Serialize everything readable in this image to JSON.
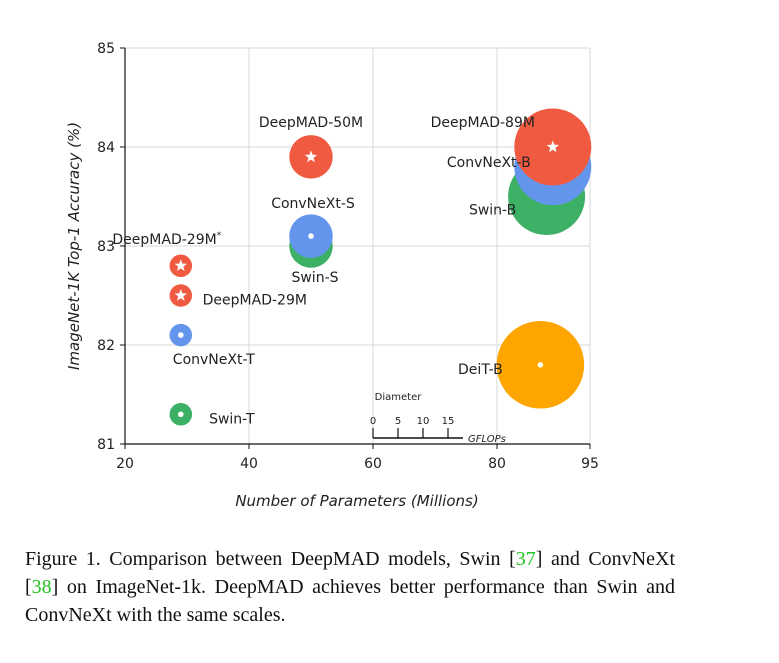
{
  "chart_data": {
    "type": "scatter",
    "xlabel": "Number of Parameters (Millions)",
    "ylabel": "ImageNet-1K Top-1 Accuracy (%)",
    "xlim": [
      20,
      95
    ],
    "ylim": [
      81,
      85
    ],
    "xticks": [
      20,
      40,
      60,
      80,
      95
    ],
    "yticks": [
      81,
      82,
      83,
      84,
      85
    ],
    "grid": true,
    "size_legend": {
      "title": "Diameter",
      "ticks": [
        "0",
        "5",
        "10",
        "15"
      ],
      "unit": "GFLOPs"
    },
    "points": [
      {
        "label": "DeepMAD-50M",
        "x": 50,
        "y": 83.9,
        "gflops": 8.7,
        "family": "DeepMAD",
        "marker": "star"
      },
      {
        "label": "DeepMAD-89M",
        "x": 89,
        "y": 84.0,
        "gflops": 15.4,
        "family": "DeepMAD",
        "marker": "star"
      },
      {
        "label": "ConvNeXt-B",
        "x": 89,
        "y": 83.8,
        "gflops": 15.4,
        "family": "ConvNeXt",
        "marker": "dot"
      },
      {
        "label": "Swin-B",
        "x": 88,
        "y": 83.5,
        "gflops": 15.4,
        "family": "Swin",
        "marker": "dot"
      },
      {
        "label": "ConvNeXt-S",
        "x": 50,
        "y": 83.1,
        "gflops": 8.7,
        "family": "ConvNeXt",
        "marker": "dot"
      },
      {
        "label": "Swin-S",
        "x": 50,
        "y": 83.0,
        "gflops": 8.7,
        "family": "Swin",
        "marker": "dot"
      },
      {
        "label": "DeepMAD-29M*",
        "x": 29,
        "y": 82.8,
        "gflops": 4.5,
        "family": "DeepMAD",
        "marker": "star"
      },
      {
        "label": "DeepMAD-29M",
        "x": 29,
        "y": 82.5,
        "gflops": 4.5,
        "family": "DeepMAD",
        "marker": "star"
      },
      {
        "label": "ConvNeXt-T",
        "x": 29,
        "y": 82.1,
        "gflops": 4.5,
        "family": "ConvNeXt",
        "marker": "dot"
      },
      {
        "label": "Swin-T",
        "x": 29,
        "y": 81.3,
        "gflops": 4.5,
        "family": "Swin",
        "marker": "dot"
      },
      {
        "label": "DeiT-B",
        "x": 87,
        "y": 81.8,
        "gflops": 17.5,
        "family": "DeiT",
        "marker": "dot"
      }
    ],
    "colors": {
      "DeepMAD": "#f05a41",
      "ConvNeXt": "#6495ed",
      "Swin": "#3cb065",
      "DeiT": "#ffa500"
    }
  },
  "caption": {
    "prefix": "Figure 1. Comparison between DeepMAD models, Swin [",
    "ref1": "37",
    "middle": "] and ConvNeXt [",
    "ref2": "38",
    "suffix": "] on ImageNet-1k. DeepMAD achieves better performance than Swin and ConvNeXt with the same scales."
  }
}
